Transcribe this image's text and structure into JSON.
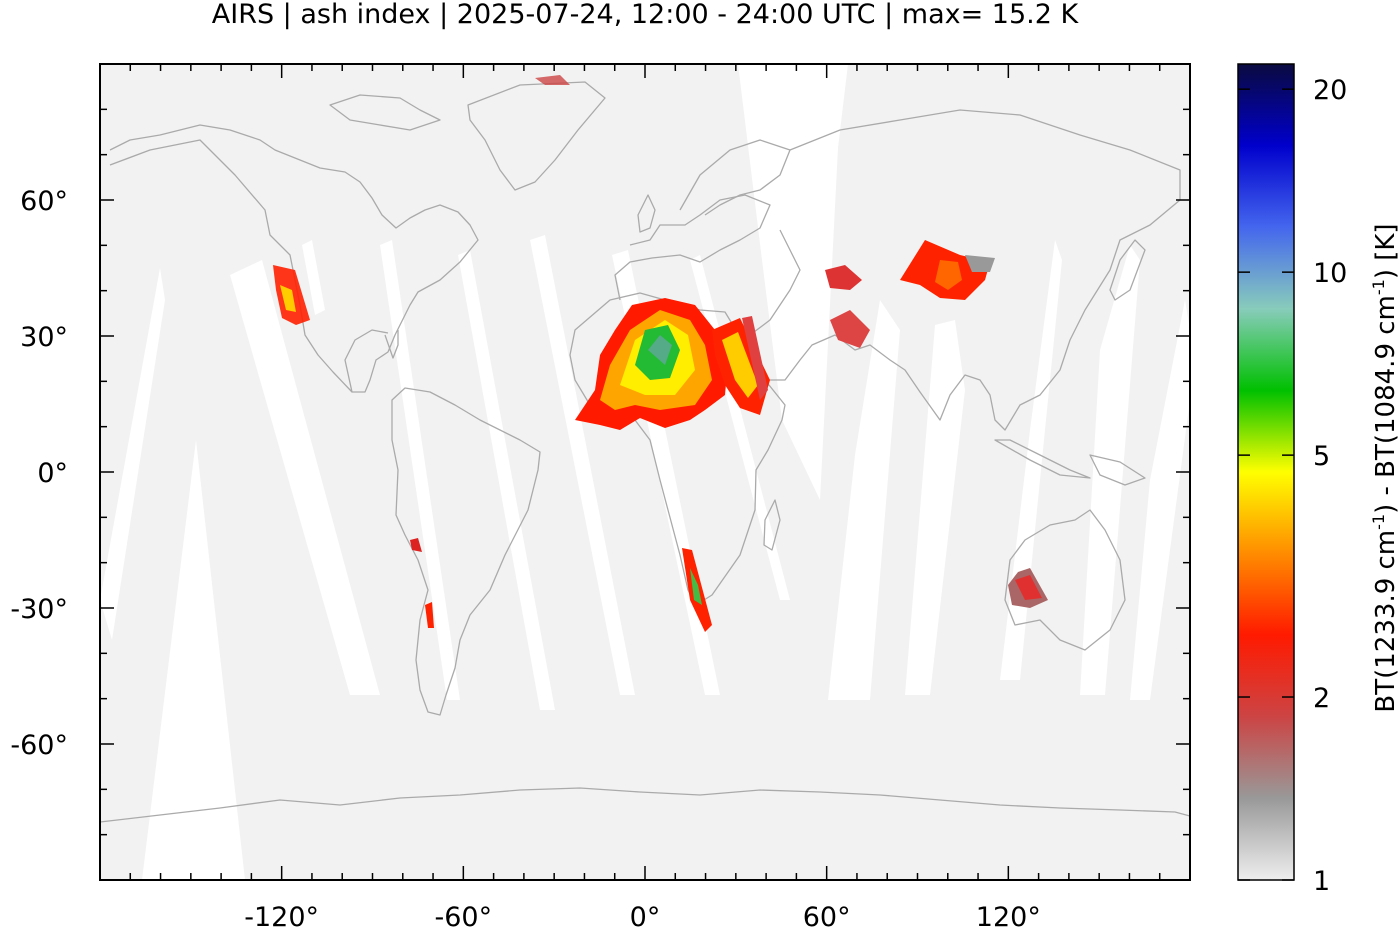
{
  "title": "AIRS | ash index | 2025-07-24, 12:00 - 24:00 UTC | max= 15.2 K",
  "map": {
    "lon_ticks": [
      {
        "value": -120,
        "label": "-120°"
      },
      {
        "value": -60,
        "label": "-60°"
      },
      {
        "value": 0,
        "label": "0°"
      },
      {
        "value": 60,
        "label": "60°"
      },
      {
        "value": 120,
        "label": "120°"
      }
    ],
    "lat_ticks": [
      {
        "value": 60,
        "label": "60°"
      },
      {
        "value": 30,
        "label": "30°"
      },
      {
        "value": 0,
        "label": "0°"
      },
      {
        "value": -30,
        "label": "-30°"
      },
      {
        "value": -60,
        "label": "-60°"
      }
    ],
    "lon_range": [
      -180,
      180
    ],
    "lat_range": [
      -90,
      90
    ],
    "background_color": "#f2f2f2",
    "coastline_color": "#aaaaaa"
  },
  "colorbar": {
    "scale": "log",
    "range": [
      1,
      22
    ],
    "ticks": [
      {
        "value": 1,
        "label": "1"
      },
      {
        "value": 2,
        "label": "2"
      },
      {
        "value": 5,
        "label": "5"
      },
      {
        "value": 10,
        "label": "10"
      },
      {
        "value": 20,
        "label": "20"
      }
    ],
    "label_parts": {
      "a": "BT(1233.9 cm",
      "a_sup": "-1",
      "b": ") - BT(1084.9 cm",
      "b_sup": "-1",
      "c": ") [K]"
    },
    "colors": [
      "#eeeeee",
      "#999999",
      "#cc4444",
      "#ff1a00",
      "#ff8c00",
      "#ffff00",
      "#00c000",
      "#88ccbb",
      "#4466ee",
      "#0000cc",
      "#0a0a40"
    ]
  }
}
